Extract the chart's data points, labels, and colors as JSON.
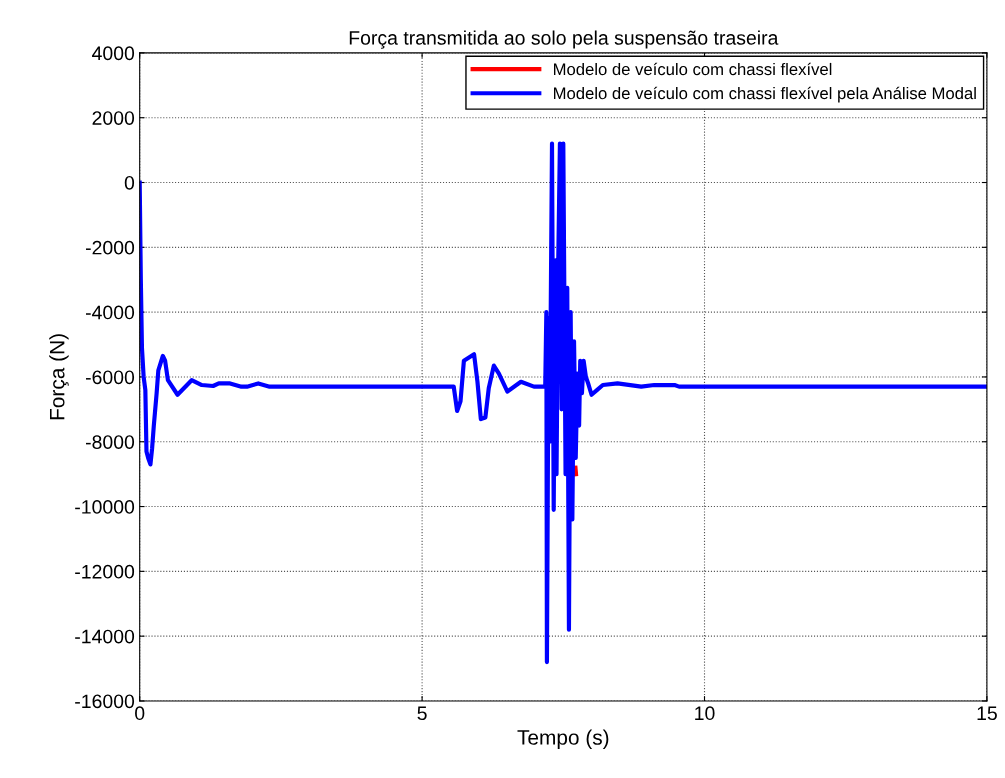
{
  "chart_data": {
    "type": "line",
    "title": "Força transmitida ao solo pela suspensão traseira",
    "xlabel": "Tempo (s)",
    "ylabel": "Força (N)",
    "xlim": [
      0,
      15
    ],
    "xticks": [
      0,
      5,
      10,
      15
    ],
    "ylim": [
      -16000,
      4000
    ],
    "yticks": [
      -16000,
      -14000,
      -12000,
      -10000,
      -8000,
      -6000,
      -4000,
      -2000,
      0,
      2000,
      4000
    ],
    "grid": true,
    "legend": "top right",
    "x": [
      0,
      0.02,
      0.04,
      0.07,
      0.1,
      0.12,
      0.15,
      0.19,
      0.22,
      0.25,
      0.3,
      0.33,
      0.41,
      0.45,
      0.5,
      0.67,
      0.92,
      1.1,
      1.3,
      1.4,
      1.6,
      1.8,
      1.9,
      2.1,
      2.3,
      5.56,
      5.62,
      5.68,
      5.74,
      5.83,
      5.92,
      5.98,
      6.04,
      6.12,
      6.18,
      6.27,
      6.36,
      6.51,
      6.75,
      6.98,
      7.18,
      7.2,
      7.21,
      7.24,
      7.26,
      7.3,
      7.33,
      7.36,
      7.38,
      7.41,
      7.44,
      7.47,
      7.5,
      7.54,
      7.57,
      7.6,
      7.63,
      7.66,
      7.69,
      7.72,
      7.75,
      7.78,
      7.8,
      7.83,
      7.86,
      7.9,
      7.94,
      8.0,
      8.1,
      8.2,
      8.46,
      8.88,
      9.11,
      9.47,
      9.55,
      15
    ],
    "series": [
      {
        "name": "Modelo de veículo com chassi flexível",
        "color": "#ff0000",
        "x": [
          7.715,
          7.725
        ],
        "values": [
          -8800,
          -9000
        ]
      },
      {
        "name": "Modelo de veículo com chassi flexível pela Análise Modal",
        "color": "#0000ff",
        "values": [
          0,
          -3000,
          -5100,
          -6000,
          -6400,
          -8300,
          -8500,
          -8700,
          -8200,
          -7500,
          -6500,
          -5800,
          -5350,
          -5500,
          -6100,
          -6550,
          -6100,
          -6250,
          -6280,
          -6200,
          -6200,
          -6300,
          -6300,
          -6200,
          -6300,
          -6300,
          -7050,
          -6750,
          -5500,
          -5400,
          -5300,
          -6150,
          -7300,
          -7250,
          -6350,
          -5650,
          -5900,
          -6450,
          -6150,
          -6300,
          -6300,
          -4000,
          -14800,
          -4200,
          -8000,
          1200,
          -10100,
          -2400,
          -9000,
          -2500,
          1200,
          -7000,
          1200,
          -9000,
          -3250,
          -13800,
          -4000,
          -10400,
          -4900,
          -8500,
          -5900,
          -7500,
          -5500,
          -6500,
          -5500,
          -6000,
          -6200,
          -6550,
          -6400,
          -6250,
          -6200,
          -6300,
          -6250,
          -6250,
          -6300,
          -6300
        ]
      }
    ]
  }
}
